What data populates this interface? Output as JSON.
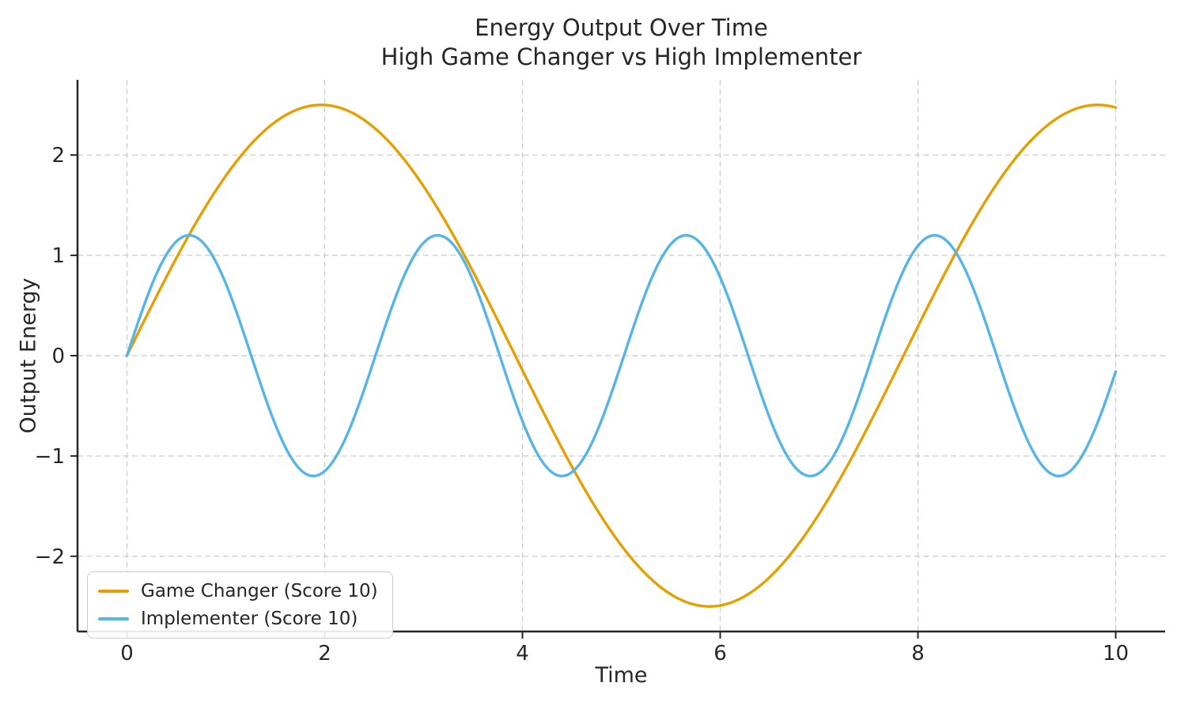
{
  "figure": {
    "title_line1": "Energy Output Over Time",
    "title_line2": "High Game Changer vs High Implementer",
    "xlabel": "Time",
    "ylabel": "Output Energy"
  },
  "chart_data": {
    "type": "line",
    "title": "Energy Output Over Time",
    "subtitle": "High Game Changer vs High Implementer",
    "xlabel": "Time",
    "ylabel": "Output Energy",
    "xlim": [
      -0.5,
      10.5
    ],
    "ylim": [
      -2.75,
      2.75
    ],
    "x_ticks": [
      0,
      2,
      4,
      6,
      8,
      10
    ],
    "y_ticks": [
      -2,
      -1,
      0,
      1,
      2
    ],
    "grid": true,
    "grid_style": "dashed",
    "grid_color": "#cfcfcf",
    "axis_color": "#262626",
    "text_color": "#262626",
    "legend_position": "lower left",
    "x_range": [
      0,
      10
    ],
    "x": [
      0,
      0.5,
      1,
      1.5,
      2,
      2.5,
      3,
      3.5,
      4,
      4.5,
      5,
      5.5,
      6,
      6.5,
      7,
      7.5,
      8,
      8.5,
      9,
      9.5,
      10
    ],
    "series": [
      {
        "name": "Game Changer (Score 10)",
        "color": "#E69F00",
        "amplitude": 2.5,
        "angular_frequency": 0.8,
        "formula": "2.5*sin(0.8*t)",
        "values": [
          0,
          0.974,
          1.793,
          2.33,
          2.499,
          2.273,
          1.689,
          0.837,
          -0.146,
          -1.106,
          -1.892,
          -2.379,
          -2.49,
          -2.209,
          -1.578,
          -0.699,
          0.291,
          1.235,
          1.984,
          2.42,
          2.473
        ]
      },
      {
        "name": "Implementer (Score 10)",
        "color": "#56B4E9",
        "amplitude": 1.2,
        "angular_frequency": 2.5,
        "formula": "1.2*sin(2.5*t)",
        "values": [
          0,
          1.139,
          0.718,
          -0.686,
          -1.151,
          -0.04,
          1.126,
          0.75,
          -0.653,
          -1.161,
          -0.08,
          1.111,
          0.78,
          -0.62,
          -1.173,
          -0.119,
          1.096,
          0.811,
          -0.584,
          -1.179,
          -0.159
        ]
      }
    ]
  }
}
